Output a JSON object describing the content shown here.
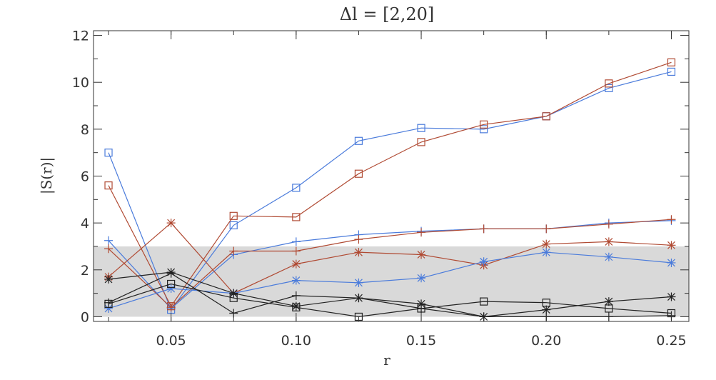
{
  "chart_data": {
    "type": "line",
    "title": "Δl = [2,20]",
    "xlabel": "r",
    "ylabel": "|S(r)|",
    "xlim": [
      0.019,
      0.257
    ],
    "ylim": [
      -0.2,
      12.2
    ],
    "xticks": [
      0.05,
      0.1,
      0.15,
      0.2,
      0.25
    ],
    "xtick_labels": [
      "0.05",
      "0.10",
      "0.15",
      "0.20",
      "0.25"
    ],
    "yticks": [
      0,
      2,
      4,
      6,
      8,
      10,
      12
    ],
    "ytick_labels": [
      "0",
      "2",
      "4",
      "6",
      "8",
      "10",
      "12"
    ],
    "shaded_band": {
      "y0": 0,
      "y1": 3,
      "color": "#d9d9d9"
    },
    "grid": false,
    "x": [
      0.025,
      0.05,
      0.075,
      0.1,
      0.125,
      0.15,
      0.175,
      0.2,
      0.225,
      0.25
    ],
    "series": [
      {
        "color": "#4a7bdb",
        "marker": "square",
        "values": [
          7.0,
          0.3,
          3.9,
          5.5,
          7.5,
          8.05,
          8.0,
          8.55,
          9.75,
          10.45
        ]
      },
      {
        "color": "#b04a33",
        "marker": "square",
        "values": [
          5.6,
          0.45,
          4.3,
          4.25,
          6.1,
          7.45,
          8.2,
          8.55,
          9.95,
          10.85
        ]
      },
      {
        "color": "#4a7bdb",
        "marker": "plus",
        "values": [
          3.25,
          0.35,
          2.65,
          3.2,
          3.5,
          3.65,
          3.75,
          3.75,
          4.0,
          4.1
        ]
      },
      {
        "color": "#b04a33",
        "marker": "plus",
        "values": [
          2.9,
          0.4,
          2.8,
          2.8,
          3.3,
          3.6,
          3.75,
          3.75,
          3.95,
          4.15
        ]
      },
      {
        "color": "#b04a33",
        "marker": "asterisk",
        "values": [
          1.7,
          4.0,
          1.0,
          2.25,
          2.75,
          2.65,
          2.2,
          3.1,
          3.2,
          3.05
        ]
      },
      {
        "color": "#4a7bdb",
        "marker": "asterisk",
        "values": [
          0.35,
          1.2,
          1.0,
          1.55,
          1.45,
          1.65,
          2.35,
          2.75,
          2.55,
          2.3
        ]
      },
      {
        "color": "#222222",
        "marker": "asterisk",
        "values": [
          1.6,
          1.9,
          1.0,
          0.45,
          0.8,
          0.55,
          0.0,
          0.3,
          0.65,
          0.85
        ]
      },
      {
        "color": "#222222",
        "marker": "plus",
        "values": [
          0.6,
          1.85,
          0.15,
          0.9,
          0.8,
          0.35,
          0.0,
          0.0,
          0.0,
          0.05
        ]
      },
      {
        "color": "#222222",
        "marker": "square",
        "values": [
          0.55,
          1.4,
          0.8,
          0.4,
          0.0,
          0.35,
          0.65,
          0.6,
          0.35,
          0.15
        ]
      }
    ]
  }
}
